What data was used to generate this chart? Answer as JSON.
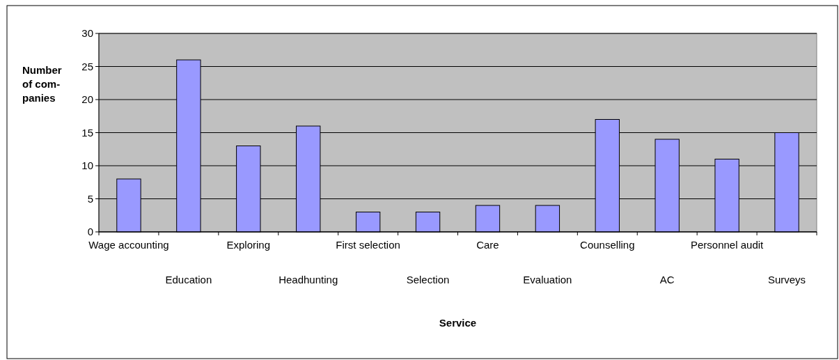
{
  "chart_data": {
    "type": "bar",
    "xlabel": "Service",
    "ylabel": "Number\nof com-\npanies",
    "categories": [
      "Wage accounting",
      "Education",
      "Exploring",
      "Headhunting",
      "First selection",
      "Selection",
      "Care",
      "Evaluation",
      "Counselling",
      "AC",
      "Personnel audit",
      "Surveys"
    ],
    "values": [
      8,
      26,
      13,
      16,
      3,
      3,
      4,
      4,
      17,
      14,
      11,
      15
    ],
    "color": "#9999ff",
    "ylim": [
      0,
      30
    ],
    "yticks": [
      0,
      5,
      10,
      15,
      20,
      25,
      30
    ],
    "grid": "y"
  }
}
